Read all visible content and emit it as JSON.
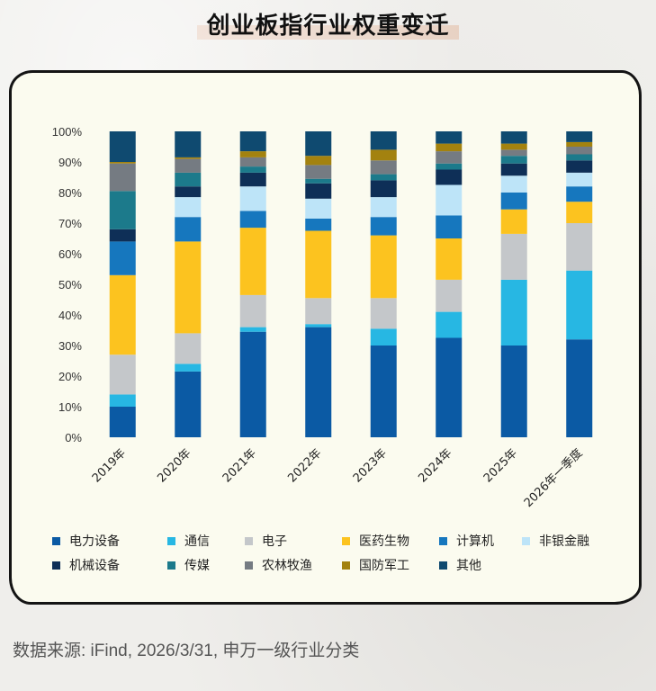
{
  "title": "创业板指行业权重变迁",
  "source": "数据来源: iFind, 2026/3/31, 申万一级行业分类",
  "chart_data": {
    "type": "bar",
    "stacked": true,
    "normalized": true,
    "categories": [
      "2019年",
      "2020年",
      "2021年",
      "2022年",
      "2023年",
      "2024年",
      "2025年",
      "2026年一季度"
    ],
    "y_ticks": [
      "0%",
      "10%",
      "20%",
      "30%",
      "40%",
      "50%",
      "60%",
      "70%",
      "80%",
      "90%",
      "100%"
    ],
    "ylim": [
      0,
      100
    ],
    "legend_position": "bottom",
    "series": [
      {
        "name": "电力设备",
        "color": "#0b5aa4",
        "values": [
          10,
          21.5,
          34.5,
          36,
          30,
          32.5,
          30,
          32
        ]
      },
      {
        "name": "通信",
        "color": "#27b7e3",
        "values": [
          4,
          2.5,
          1.5,
          1,
          5.5,
          8.5,
          21.5,
          22.5
        ]
      },
      {
        "name": "电子",
        "color": "#c4c7ca",
        "values": [
          13,
          10,
          10.5,
          8.5,
          10,
          10.5,
          15,
          15.5
        ]
      },
      {
        "name": "医药生物",
        "color": "#fcc31f",
        "values": [
          26,
          30,
          22,
          22,
          20.5,
          13.5,
          8,
          7
        ]
      },
      {
        "name": "计算机",
        "color": "#1677be",
        "values": [
          11,
          8,
          5.5,
          4,
          6,
          7.5,
          5.5,
          5
        ]
      },
      {
        "name": "非银金融",
        "color": "#bde4f8",
        "values": [
          0,
          6.5,
          8,
          6.5,
          6.5,
          10,
          5.5,
          4.5
        ]
      },
      {
        "name": "机械设备",
        "color": "#0e2f57",
        "values": [
          4,
          3.5,
          4.5,
          5,
          5.5,
          5,
          4,
          4
        ]
      },
      {
        "name": "传媒",
        "color": "#1c7a8b",
        "values": [
          12.5,
          4.5,
          2,
          1.5,
          2,
          2,
          2.5,
          2
        ]
      },
      {
        "name": "农林牧渔",
        "color": "#757b82",
        "values": [
          9,
          4.5,
          3,
          4.5,
          4.5,
          4,
          2,
          2.5
        ]
      },
      {
        "name": "国防军工",
        "color": "#a3820f",
        "values": [
          0.5,
          0.5,
          2,
          3,
          3.5,
          2.5,
          2,
          1.5
        ]
      },
      {
        "name": "其他",
        "color": "#0f4a70",
        "values": [
          10,
          8.5,
          6.5,
          8,
          6,
          4,
          4,
          3.5
        ]
      }
    ]
  }
}
